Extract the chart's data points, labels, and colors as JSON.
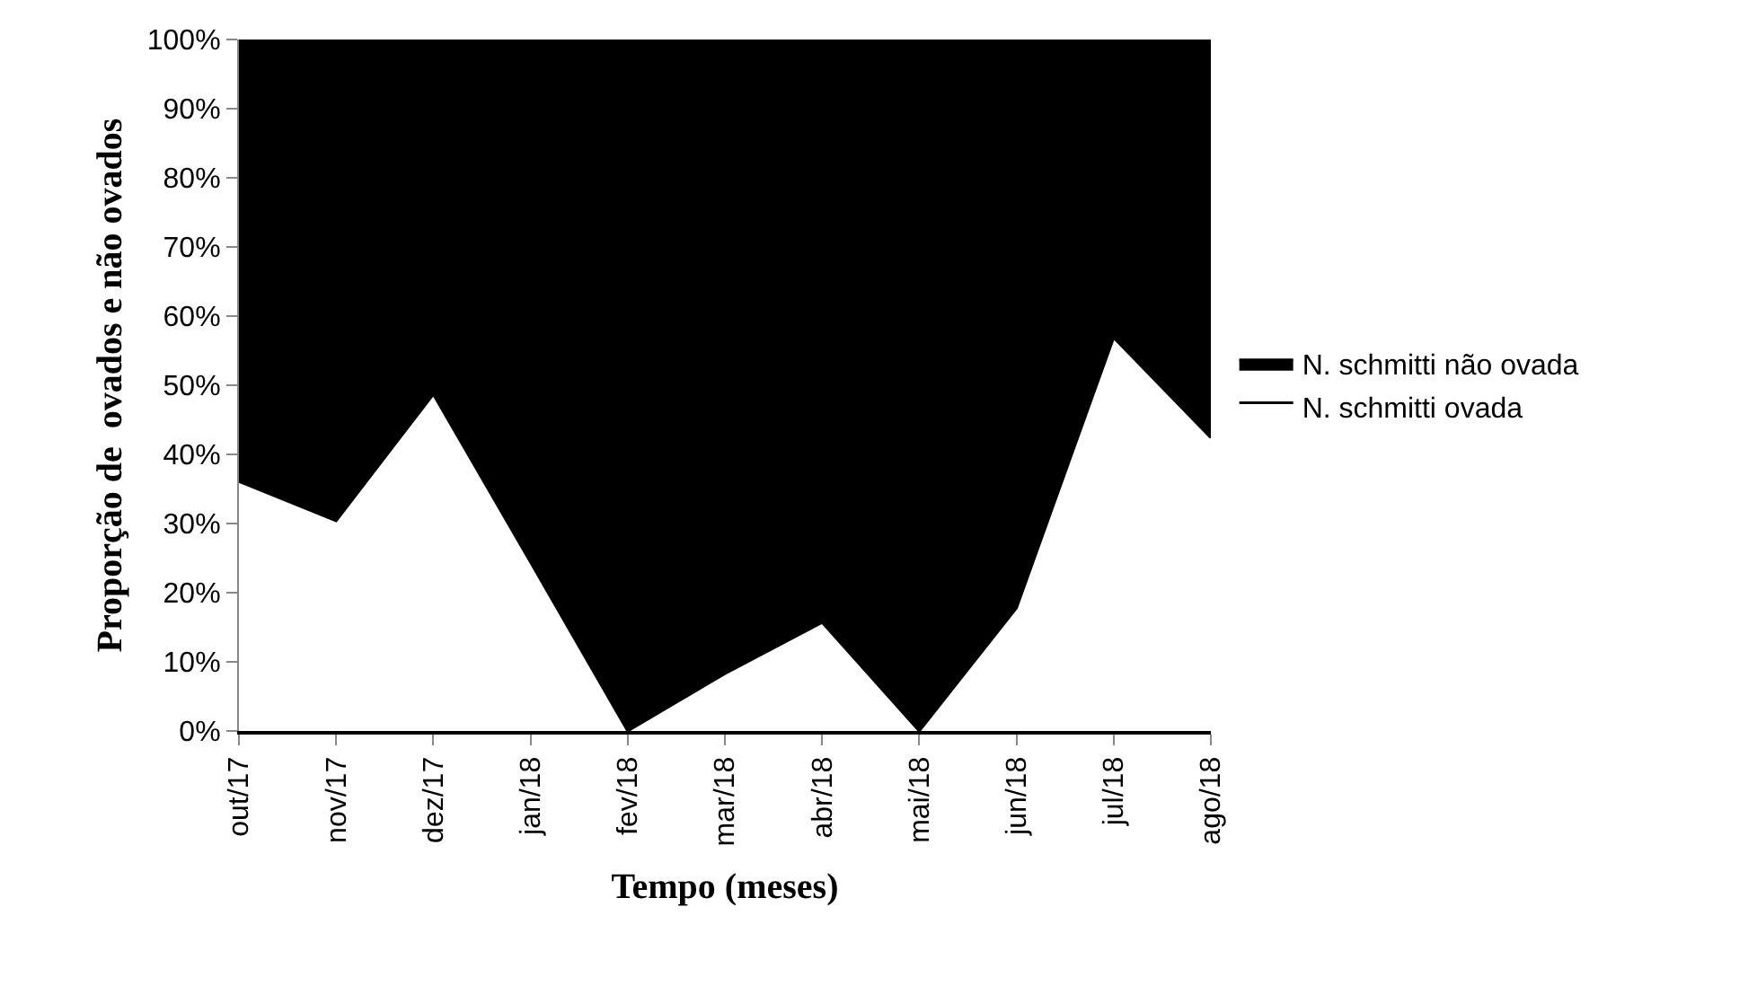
{
  "chart_data": {
    "type": "area",
    "stacked": true,
    "xlabel": "Tempo (meses)",
    "ylabel": "Proporção de  ovados e não ovados",
    "categories": [
      "out/17",
      "nov/17",
      "dez/17",
      "jan/18",
      "fev/18",
      "mar/18",
      "abr/18",
      "mai/18",
      "jun/18",
      "jul/18",
      "ago/18"
    ],
    "series": [
      {
        "name": "N. schmitti ovada",
        "color": "#ffffff",
        "values": [
          36.1,
          30.4,
          48.7,
          24.4,
          0,
          8.3,
          15.7,
          0,
          17.8,
          56.9,
          42.4
        ]
      },
      {
        "name": "N. schmitti não ovada",
        "color": "#000000",
        "values": [
          63.9,
          69.6,
          51.3,
          75.6,
          100,
          91.7,
          84.3,
          100,
          82.2,
          43.1,
          57.6
        ]
      }
    ],
    "ylim": [
      0,
      100
    ],
    "yticks": [
      {
        "value": 0,
        "label": "0%"
      },
      {
        "value": 10,
        "label": "10%"
      },
      {
        "value": 20,
        "label": "20%"
      },
      {
        "value": 30,
        "label": "30%"
      },
      {
        "value": 40,
        "label": "40%"
      },
      {
        "value": 50,
        "label": "50%"
      },
      {
        "value": 60,
        "label": "60%"
      },
      {
        "value": 70,
        "label": "70%"
      },
      {
        "value": 80,
        "label": "80%"
      },
      {
        "value": 90,
        "label": "90%"
      },
      {
        "value": 100,
        "label": "100%"
      }
    ],
    "legend": "right"
  }
}
